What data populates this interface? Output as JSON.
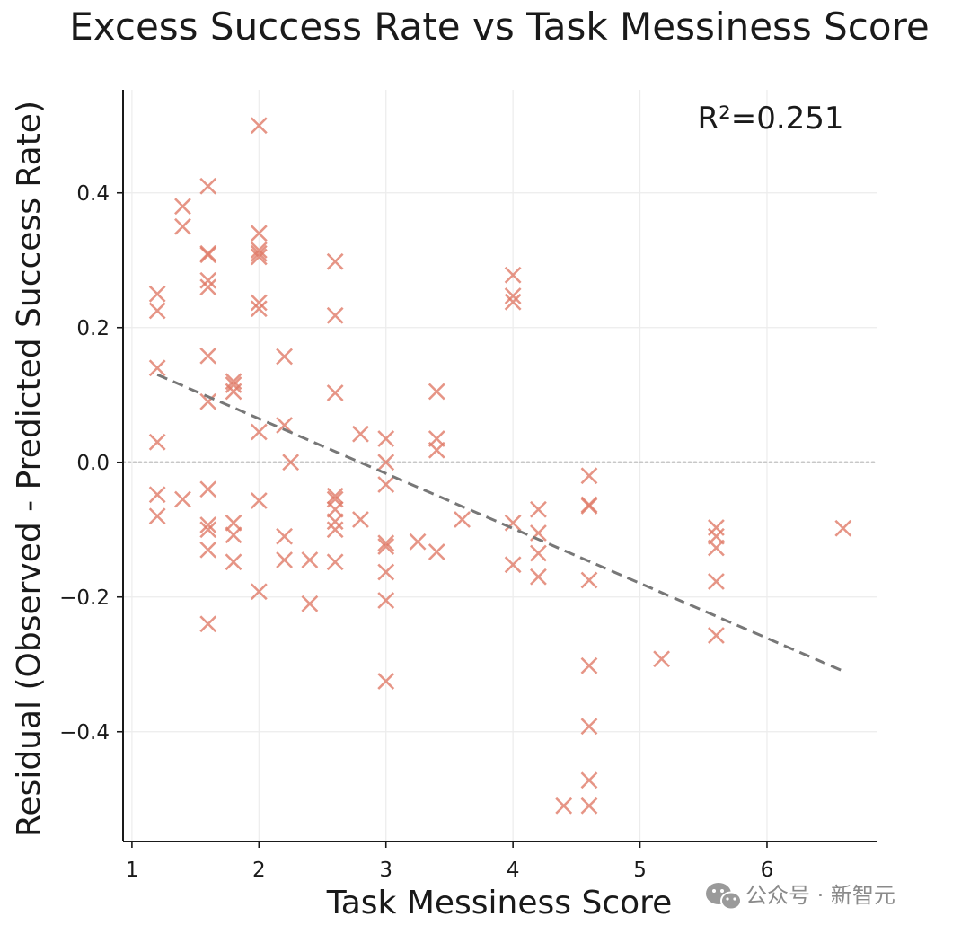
{
  "chart_data": {
    "type": "scatter",
    "title": "Excess Success Rate vs Task Messiness Score",
    "xlabel": "Task Messiness Score",
    "ylabel": "Residual (Observed - Predicted Success Rate)",
    "xlim": [
      0.93,
      6.87
    ],
    "ylim": [
      -0.563,
      0.553
    ],
    "xticks": [
      1,
      2,
      3,
      4,
      5,
      6
    ],
    "xtick_labels": [
      "1",
      "2",
      "3",
      "4",
      "5",
      "6"
    ],
    "yticks": [
      -0.4,
      -0.2,
      0.0,
      0.2,
      0.4
    ],
    "ytick_labels": [
      "−0.4",
      "−0.2",
      "0.0",
      "0.2",
      "0.4"
    ],
    "grid": true,
    "marker": "x",
    "marker_color": "#e07a68",
    "trend_color": "#777777",
    "zero_line_color": "#c8c8c8",
    "annotation": "R²=0.251",
    "trendline": {
      "x": [
        1.2,
        6.6
      ],
      "y": [
        0.13,
        -0.31
      ]
    },
    "points": [
      {
        "x": 1.2,
        "y": 0.25
      },
      {
        "x": 1.2,
        "y": 0.225
      },
      {
        "x": 1.2,
        "y": 0.14
      },
      {
        "x": 1.2,
        "y": 0.03
      },
      {
        "x": 1.2,
        "y": -0.048
      },
      {
        "x": 1.2,
        "y": -0.08
      },
      {
        "x": 1.4,
        "y": 0.38
      },
      {
        "x": 1.4,
        "y": 0.35
      },
      {
        "x": 1.4,
        "y": -0.055
      },
      {
        "x": 1.6,
        "y": 0.41
      },
      {
        "x": 1.6,
        "y": 0.31
      },
      {
        "x": 1.6,
        "y": 0.308
      },
      {
        "x": 1.6,
        "y": 0.27
      },
      {
        "x": 1.6,
        "y": 0.26
      },
      {
        "x": 1.6,
        "y": 0.158
      },
      {
        "x": 1.6,
        "y": 0.09
      },
      {
        "x": 1.6,
        "y": -0.04
      },
      {
        "x": 1.6,
        "y": -0.093
      },
      {
        "x": 1.6,
        "y": -0.1
      },
      {
        "x": 1.6,
        "y": -0.13
      },
      {
        "x": 1.6,
        "y": -0.24
      },
      {
        "x": 1.8,
        "y": 0.12
      },
      {
        "x": 1.8,
        "y": 0.115
      },
      {
        "x": 1.8,
        "y": 0.105
      },
      {
        "x": 1.8,
        "y": -0.09
      },
      {
        "x": 1.8,
        "y": -0.108
      },
      {
        "x": 1.8,
        "y": -0.148
      },
      {
        "x": 2.0,
        "y": 0.5
      },
      {
        "x": 2.0,
        "y": 0.34
      },
      {
        "x": 2.0,
        "y": 0.315
      },
      {
        "x": 2.0,
        "y": 0.31
      },
      {
        "x": 2.0,
        "y": 0.305
      },
      {
        "x": 2.0,
        "y": 0.237
      },
      {
        "x": 2.0,
        "y": 0.228
      },
      {
        "x": 2.0,
        "y": 0.045
      },
      {
        "x": 2.0,
        "y": -0.057
      },
      {
        "x": 2.0,
        "y": -0.192
      },
      {
        "x": 2.2,
        "y": 0.157
      },
      {
        "x": 2.2,
        "y": 0.055
      },
      {
        "x": 2.2,
        "y": -0.11
      },
      {
        "x": 2.2,
        "y": -0.145
      },
      {
        "x": 2.25,
        "y": 0.0
      },
      {
        "x": 2.4,
        "y": -0.145
      },
      {
        "x": 2.4,
        "y": -0.21
      },
      {
        "x": 2.6,
        "y": 0.298
      },
      {
        "x": 2.6,
        "y": 0.218
      },
      {
        "x": 2.6,
        "y": 0.103
      },
      {
        "x": 2.6,
        "y": -0.05
      },
      {
        "x": 2.6,
        "y": -0.055
      },
      {
        "x": 2.6,
        "y": -0.07
      },
      {
        "x": 2.6,
        "y": -0.088
      },
      {
        "x": 2.6,
        "y": -0.1
      },
      {
        "x": 2.6,
        "y": -0.148
      },
      {
        "x": 2.8,
        "y": 0.042
      },
      {
        "x": 2.8,
        "y": -0.085
      },
      {
        "x": 3.0,
        "y": 0.035
      },
      {
        "x": 3.0,
        "y": 0.0
      },
      {
        "x": 3.0,
        "y": -0.033
      },
      {
        "x": 3.0,
        "y": -0.12
      },
      {
        "x": 3.0,
        "y": -0.125
      },
      {
        "x": 3.0,
        "y": -0.163
      },
      {
        "x": 3.0,
        "y": -0.205
      },
      {
        "x": 3.0,
        "y": -0.325
      },
      {
        "x": 3.25,
        "y": -0.118
      },
      {
        "x": 3.4,
        "y": 0.105
      },
      {
        "x": 3.4,
        "y": 0.035
      },
      {
        "x": 3.4,
        "y": 0.018
      },
      {
        "x": 3.4,
        "y": -0.133
      },
      {
        "x": 3.6,
        "y": -0.085
      },
      {
        "x": 4.0,
        "y": 0.278
      },
      {
        "x": 4.0,
        "y": 0.247
      },
      {
        "x": 4.0,
        "y": 0.238
      },
      {
        "x": 4.0,
        "y": -0.09
      },
      {
        "x": 4.0,
        "y": -0.152
      },
      {
        "x": 4.2,
        "y": -0.07
      },
      {
        "x": 4.2,
        "y": -0.105
      },
      {
        "x": 4.2,
        "y": -0.135
      },
      {
        "x": 4.2,
        "y": -0.17
      },
      {
        "x": 4.4,
        "y": -0.51
      },
      {
        "x": 4.6,
        "y": -0.02
      },
      {
        "x": 4.6,
        "y": -0.063
      },
      {
        "x": 4.6,
        "y": -0.065
      },
      {
        "x": 4.6,
        "y": -0.175
      },
      {
        "x": 4.6,
        "y": -0.302
      },
      {
        "x": 4.6,
        "y": -0.392
      },
      {
        "x": 4.6,
        "y": -0.472
      },
      {
        "x": 4.6,
        "y": -0.51
      },
      {
        "x": 5.17,
        "y": -0.292
      },
      {
        "x": 5.6,
        "y": -0.097
      },
      {
        "x": 5.6,
        "y": -0.11
      },
      {
        "x": 5.6,
        "y": -0.127
      },
      {
        "x": 5.6,
        "y": -0.177
      },
      {
        "x": 5.6,
        "y": -0.257
      },
      {
        "x": 6.6,
        "y": -0.098
      }
    ]
  },
  "watermark": {
    "icon": "wechat-icon",
    "text": "公众号 · 新智元"
  }
}
